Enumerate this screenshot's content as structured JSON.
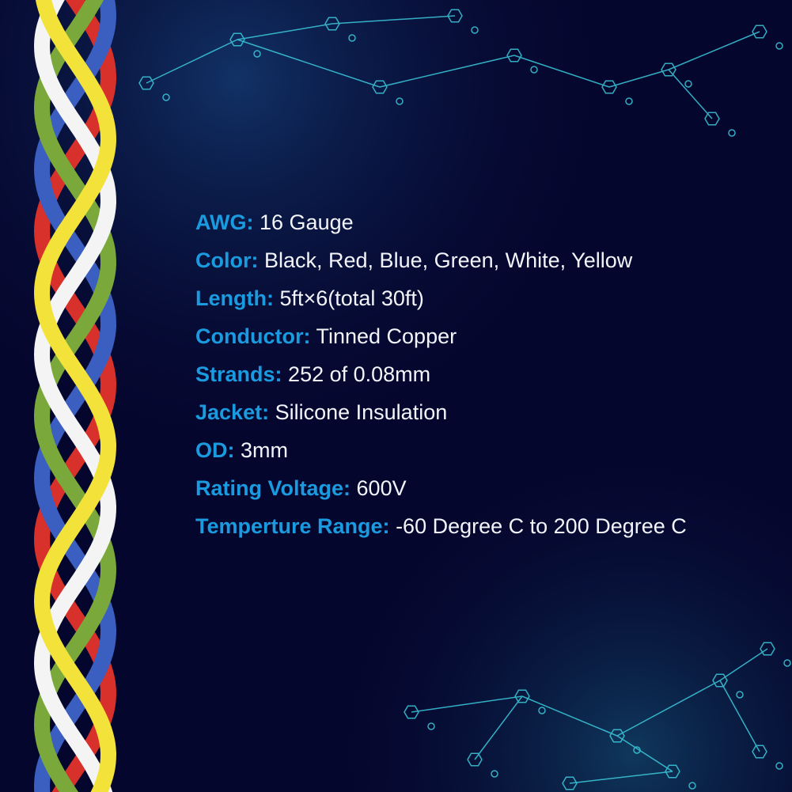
{
  "colors": {
    "background": "#05062e",
    "label": "#1a9be0",
    "value": "#f2f4fa",
    "circuit": "#3fd6e6",
    "wires": [
      "#f2e23a",
      "#7aa83a",
      "#f4f4f4",
      "#d8302a",
      "#3a5fc0"
    ]
  },
  "specs": [
    {
      "label": "AWG:",
      "value": "16 Gauge"
    },
    {
      "label": "Color:",
      "value": "Black, Red, Blue, Green, White, Yellow"
    },
    {
      "label": "Length:",
      "value": "5ft×6(total 30ft)"
    },
    {
      "label": "Conductor:",
      "value": "Tinned Copper"
    },
    {
      "label": "Strands:",
      "value": "252 of 0.08mm"
    },
    {
      "label": "Jacket:",
      "value": "Silicone Insulation"
    },
    {
      "label": "OD:",
      "value": "3mm"
    },
    {
      "label": "Rating Voltage:",
      "value": "600V"
    },
    {
      "label": "Temperture Range:",
      "value": "-60 Degree C to 200 Degree C"
    }
  ]
}
